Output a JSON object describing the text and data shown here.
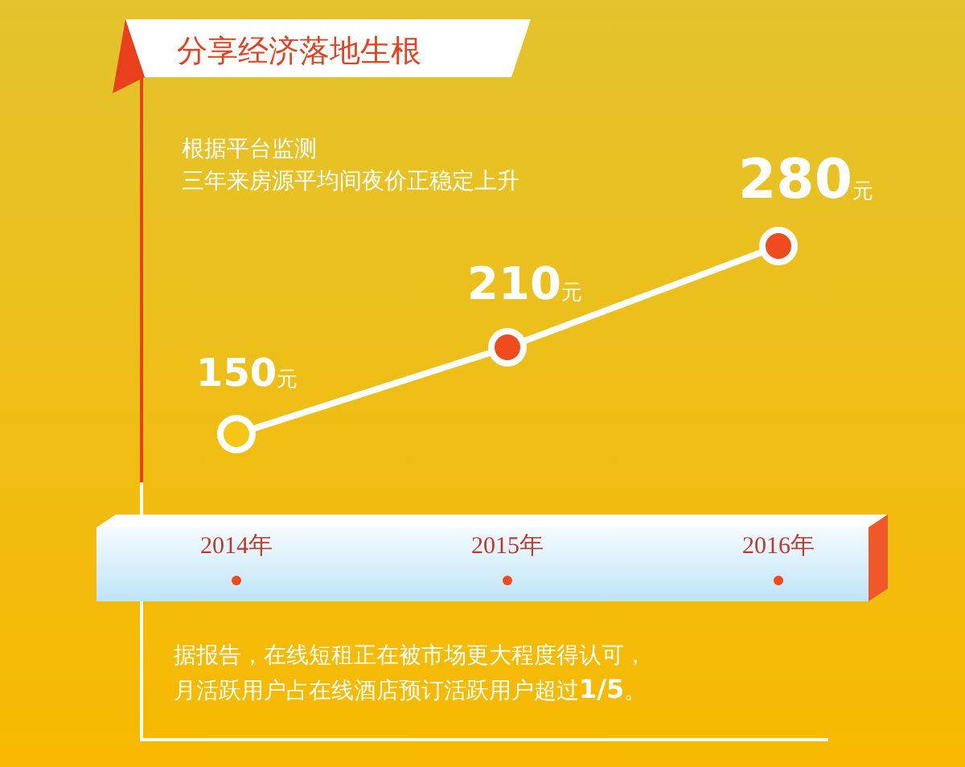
{
  "chart_data": {
    "type": "line",
    "title": "分享经济落地生根",
    "subtitle": "根据平台监测",
    "categories": [
      "2014年",
      "2015年",
      "2016年"
    ],
    "series": [
      {
        "color": "#ffffff",
        "colors": [
          "#f5c518",
          "#ee4b1e",
          "#ee4b1e"
        ],
        "values": [
          150,
          210,
          280
        ],
        "value_labels": [
          "150元",
          "210元",
          "280元"
        ]
      }
    ],
    "marker": "circle",
    "line_style": "solid",
    "annotations": [
      "三年来房源平均间夜价正稳定上升",
      "据报告，在线短租正在被市场更大程度得认可，",
      "月活跃用户占在线酒店预订活跃用户超过1/5。"
    ]
  }
}
